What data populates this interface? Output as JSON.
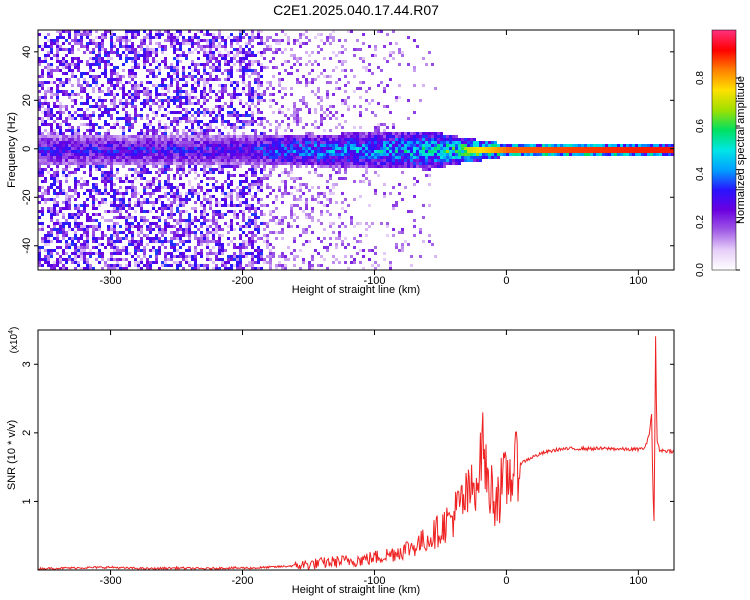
{
  "figure": {
    "title": "C2E1.2025.040.17.44.R07"
  },
  "chart_data": [
    {
      "type": "heatmap",
      "title": "C2E1.2025.040.17.44.R07",
      "xlabel": "Height of straight line (km)",
      "ylabel": "Frequency (Hz)",
      "xlim": [
        -355,
        127
      ],
      "ylim": [
        -50,
        49
      ],
      "xticks": [
        -300,
        -200,
        -100,
        0,
        100
      ],
      "yticks": [
        -40,
        -20,
        0,
        20,
        40
      ],
      "colorbar": {
        "label": "Normalized spectral amplitude",
        "range": [
          0,
          1
        ],
        "ticks": [
          0.0,
          0.2,
          0.4,
          0.6,
          0.8
        ],
        "colors": [
          "#ffffff",
          "#e6cef8",
          "#a05ae6",
          "#6a00e0",
          "#2a14ff",
          "#00a0ff",
          "#00e6e6",
          "#00e060",
          "#a0e000",
          "#ffe000",
          "#ff8000",
          "#ff0000",
          "#ff3080"
        ]
      },
      "features": {
        "band_center_hz": 0,
        "noisy_region_x": [
          -355,
          -185
        ],
        "strong_line_x": [
          -30,
          127
        ],
        "band_halfwidth_hz_at_x": [
          [
            -355,
            6
          ],
          [
            -185,
            6
          ],
          [
            -60,
            8
          ],
          [
            -30,
            5
          ],
          [
            0,
            2.5
          ],
          [
            127,
            2
          ]
        ],
        "peak_amplitude_at_x": [
          [
            -355,
            0.35
          ],
          [
            -190,
            0.35
          ],
          [
            -180,
            0.45
          ],
          [
            -100,
            0.5
          ],
          [
            -60,
            0.55
          ],
          [
            -30,
            0.7
          ],
          [
            0,
            0.85
          ],
          [
            100,
            0.9
          ],
          [
            127,
            0.9
          ]
        ]
      }
    },
    {
      "type": "line",
      "xlabel": "Height of straight line (km)",
      "ylabel": "SNR (10 * v/v)",
      "y_multiplier": "(x10",
      "y_multiplier_exp": "4",
      "y_multiplier_close": ")",
      "xlim": [
        -355,
        127
      ],
      "ylim": [
        0,
        3.5
      ],
      "xticks": [
        -300,
        -200,
        -100,
        0,
        100
      ],
      "yticks": [
        1,
        2,
        3
      ],
      "color": "#ee2222",
      "series": [
        {
          "x": [
            -355,
            -330,
            -300,
            -290,
            -270,
            -250,
            -230,
            -210,
            -190,
            -170,
            -150,
            -130,
            -110,
            -100,
            -90,
            -80,
            -70,
            -60,
            -50,
            -40,
            -35,
            -30,
            -25,
            -20,
            -18,
            -15,
            -10,
            -5,
            0,
            5,
            10,
            20,
            30,
            40,
            50,
            60,
            70,
            80,
            90,
            100,
            105,
            108,
            110,
            111,
            112,
            113,
            114,
            116,
            120,
            127
          ],
          "y": [
            0.02,
            0.03,
            0.04,
            0.03,
            0.02,
            0.03,
            0.02,
            0.03,
            0.03,
            0.05,
            0.08,
            0.12,
            0.15,
            0.18,
            0.22,
            0.28,
            0.35,
            0.45,
            0.6,
            0.8,
            0.95,
            1.05,
            1.2,
            1.5,
            2.0,
            1.3,
            1.1,
            1.15,
            1.3,
            1.45,
            1.55,
            1.65,
            1.72,
            1.76,
            1.77,
            1.77,
            1.77,
            1.77,
            1.76,
            1.76,
            1.78,
            1.95,
            2.3,
            1.2,
            0.6,
            3.5,
            1.9,
            1.75,
            1.74,
            1.73
          ]
        }
      ]
    }
  ]
}
